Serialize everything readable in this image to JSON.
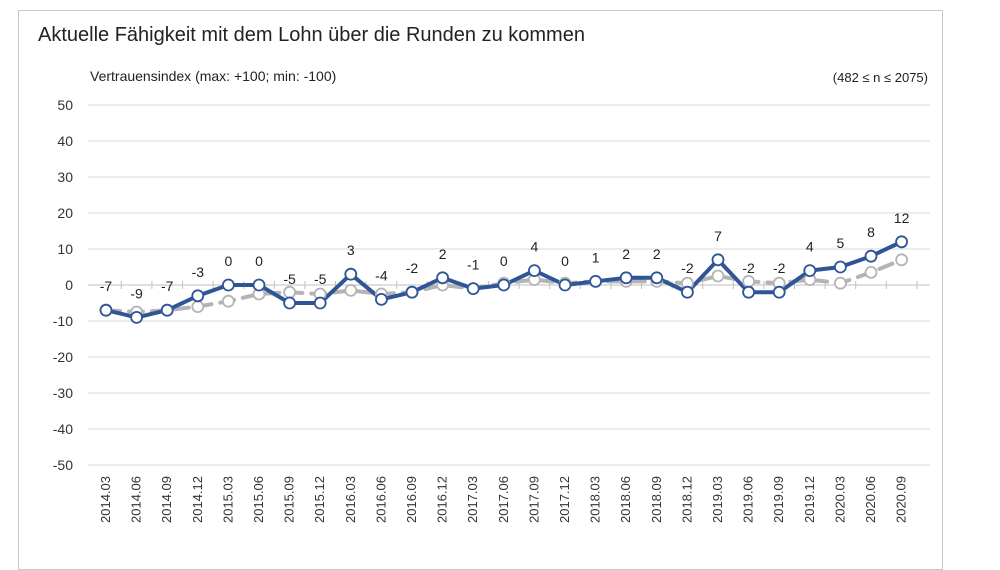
{
  "chart_data": {
    "type": "line",
    "title": "Aktuelle Fähigkeit mit dem Lohn über die Runden zu kommen",
    "ylabel": "Vertrauensindex (max: +100; min: -100)",
    "note": "(482 ≤ n ≤ 2075)",
    "xlabel": "",
    "ylim": [
      -50,
      50
    ],
    "yticks": [
      50,
      40,
      30,
      20,
      10,
      0,
      -10,
      -20,
      -30,
      -40,
      -50
    ],
    "categories": [
      "2014.03",
      "2014.06",
      "2014.09",
      "2014.12",
      "2015.03",
      "2015.06",
      "2015.09",
      "2015.12",
      "2016.03",
      "2016.06",
      "2016.09",
      "2016.12",
      "2017.03",
      "2017.06",
      "2017.09",
      "2017.12",
      "2018.03",
      "2018.06",
      "2018.09",
      "2018.12",
      "2019.03",
      "2019.06",
      "2019.09",
      "2019.12",
      "2020.03",
      "2020.06",
      "2020.09"
    ],
    "series": [
      {
        "color": "#2f5597",
        "style": "solid",
        "values": [
          -7,
          -9,
          -7,
          -3,
          0,
          0,
          -5,
          -5,
          3,
          -4,
          -2,
          2,
          -1,
          0,
          4,
          0,
          1,
          2,
          2,
          -2,
          7,
          -2,
          -2,
          4,
          5,
          8,
          12
        ],
        "data_labels": [
          "-7",
          "-9",
          "-7",
          "-3",
          "0",
          "0",
          "-5",
          "-5",
          "3",
          "-4",
          "-2",
          "2",
          "-1",
          "0",
          "4",
          "0",
          "1",
          "2",
          "2",
          "-2",
          "7",
          "-2",
          "-2",
          "4",
          "5",
          "8",
          "12"
        ]
      },
      {
        "color": "#b4b4b4",
        "style": "dashed",
        "values": [
          -7,
          -7.5,
          -7,
          -6,
          -4.5,
          -2.5,
          -2,
          -2.5,
          -1.5,
          -2.5,
          -2,
          0,
          -1,
          0.5,
          1.5,
          0.5,
          1,
          1,
          1,
          0.5,
          2.5,
          1,
          0.5,
          1.5,
          0.5,
          3.5,
          7
        ]
      }
    ],
    "grid": true,
    "legend": "none"
  }
}
